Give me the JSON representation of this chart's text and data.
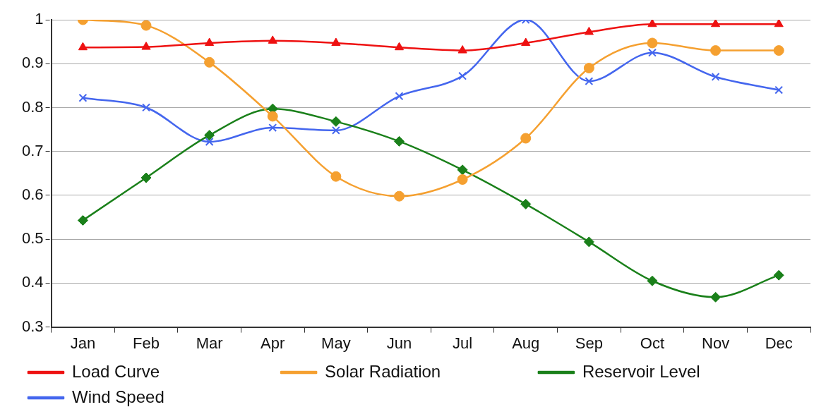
{
  "chart_data": {
    "type": "line",
    "categories": [
      "Jan",
      "Feb",
      "Mar",
      "Apr",
      "May",
      "Jun",
      "Jul",
      "Aug",
      "Sep",
      "Oct",
      "Nov",
      "Dec"
    ],
    "series": [
      {
        "name": "Load Curve",
        "color": "#ee1111",
        "marker": "triangle",
        "values": [
          0.937,
          0.938,
          0.947,
          0.952,
          0.947,
          0.937,
          0.93,
          0.947,
          0.972,
          0.99,
          0.99,
          0.99
        ]
      },
      {
        "name": "Solar Radiation",
        "color": "#f5a030",
        "marker": "circle",
        "values": [
          1.0,
          0.987,
          0.903,
          0.78,
          0.643,
          0.598,
          0.636,
          0.73,
          0.89,
          0.947,
          0.93,
          0.93
        ]
      },
      {
        "name": "Reservoir Level",
        "color": "#1a801a",
        "marker": "diamond",
        "values": [
          0.543,
          0.64,
          0.737,
          0.797,
          0.768,
          0.723,
          0.658,
          0.58,
          0.494,
          0.405,
          0.368,
          0.418
        ]
      },
      {
        "name": "Wind Speed",
        "color": "#4466ee",
        "marker": "cross",
        "values": [
          0.822,
          0.8,
          0.722,
          0.754,
          0.748,
          0.826,
          0.872,
          1.0,
          0.86,
          0.925,
          0.87,
          0.84
        ]
      }
    ],
    "ylim": [
      0.3,
      1
    ],
    "yticks": [
      0.3,
      0.4,
      0.5,
      0.6,
      0.7,
      0.8,
      0.9,
      1
    ],
    "grid": "y",
    "legend": "bottom"
  }
}
